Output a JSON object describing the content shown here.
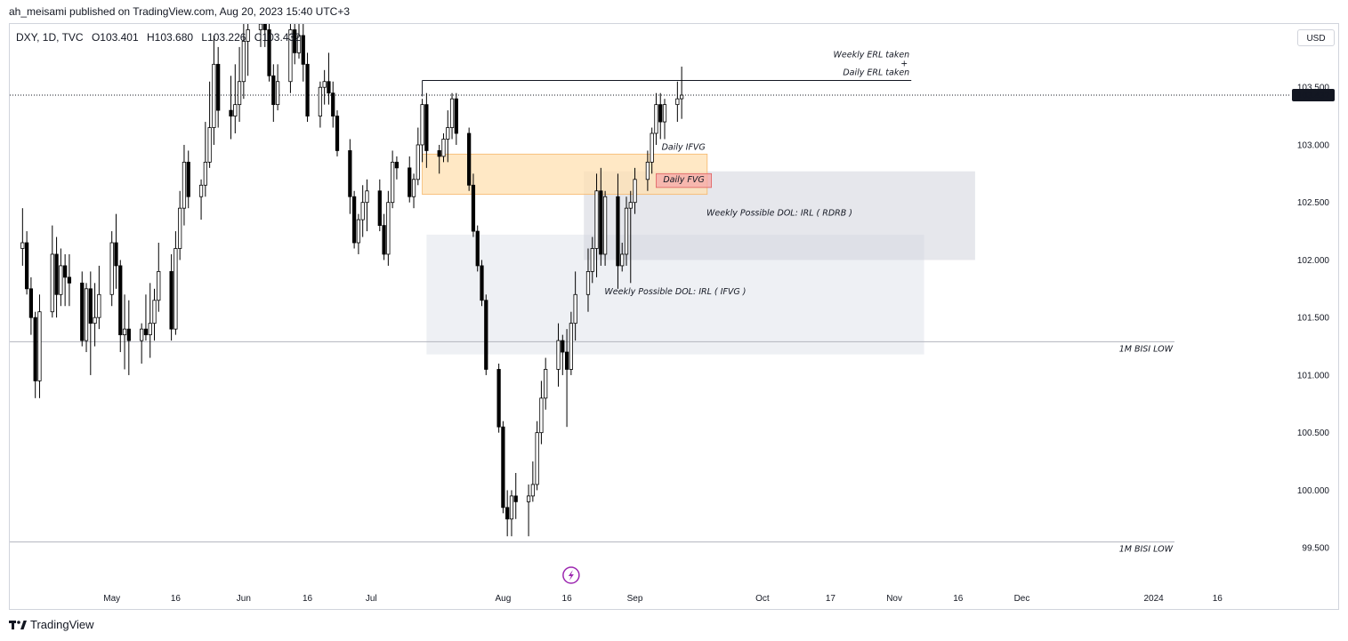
{
  "header": {
    "published": "ah_meisami published on TradingView.com, Aug 20, 2023 15:40 UTC+3"
  },
  "legend": {
    "symbol": "DXY, 1D, TVC",
    "open": "O103.401",
    "high": "H103.680",
    "low": "L103.226",
    "close": "C103.432"
  },
  "currency_button": "USD",
  "footer": {
    "brand": "TradingView"
  },
  "colors": {
    "ifvg_zone": "#ffe0b2",
    "ifvg_border": "#f5b76b",
    "fvg_zone": "#f5a8a8",
    "fvg_border": "#e06060",
    "dol_rdrb_zone": "#d1d4dc",
    "dol_ifvg_zone": "#e0e3eb",
    "bear_candle": "#000000",
    "bull_candle": "#ffffff",
    "event_icon": "#9c27b0"
  },
  "chart_data": {
    "type": "candlestick",
    "symbol": "DXY",
    "timeframe": "1D",
    "ylim": [
      99.2,
      104.05
    ],
    "y_ticks": [
      "103.500",
      "103.000",
      "102.500",
      "102.000",
      "101.500",
      "101.000",
      "100.500",
      "100.000",
      "99.500"
    ],
    "last_price": "103.432",
    "x_ticks": [
      {
        "label": "May",
        "date": "2023-05-01"
      },
      {
        "label": "16",
        "date": "2023-05-16"
      },
      {
        "label": "Jun",
        "date": "2023-06-01"
      },
      {
        "label": "16",
        "date": "2023-06-16"
      },
      {
        "label": "Jul",
        "date": "2023-07-01"
      },
      {
        "label": "Aug",
        "date": "2023-08-01"
      },
      {
        "label": "16",
        "date": "2023-08-16"
      },
      {
        "label": "Sep",
        "date": "2023-09-01"
      },
      {
        "label": "Oct",
        "date": "2023-10-01"
      },
      {
        "label": "17",
        "date": "2023-10-17"
      },
      {
        "label": "Nov",
        "date": "2023-11-01"
      },
      {
        "label": "16",
        "date": "2023-11-16"
      },
      {
        "label": "Dec",
        "date": "2023-12-01"
      },
      {
        "label": "2024",
        "date": "2024-01-01"
      },
      {
        "label": "16",
        "date": "2024-01-16"
      }
    ],
    "x_range": [
      "2023-04-07",
      "2024-01-31"
    ],
    "candles": [
      [
        "2023-04-10",
        102.1,
        102.45,
        101.95,
        102.15
      ],
      [
        "2023-04-11",
        102.15,
        102.25,
        101.7,
        101.75
      ],
      [
        "2023-04-12",
        101.75,
        101.85,
        101.35,
        101.5
      ],
      [
        "2023-04-13",
        101.5,
        101.55,
        100.8,
        100.95
      ],
      [
        "2023-04-14",
        100.95,
        101.7,
        100.8,
        101.55
      ],
      [
        "2023-04-17",
        101.55,
        102.3,
        101.5,
        102.05
      ],
      [
        "2023-04-18",
        102.05,
        102.2,
        101.5,
        101.7
      ],
      [
        "2023-04-19",
        101.7,
        102.1,
        101.6,
        101.95
      ],
      [
        "2023-04-20",
        101.95,
        102.05,
        101.6,
        101.85
      ],
      [
        "2023-04-21",
        101.85,
        102.05,
        101.6,
        101.8
      ],
      [
        "2023-04-24",
        101.8,
        101.9,
        101.25,
        101.3
      ],
      [
        "2023-04-25",
        101.3,
        101.8,
        101.2,
        101.75
      ],
      [
        "2023-04-26",
        101.75,
        101.9,
        101.0,
        101.45
      ],
      [
        "2023-04-27",
        101.45,
        101.8,
        101.25,
        101.5
      ],
      [
        "2023-04-28",
        101.5,
        101.95,
        101.4,
        101.7
      ],
      [
        "2023-05-01",
        101.7,
        102.25,
        101.6,
        102.15
      ],
      [
        "2023-05-02",
        102.15,
        102.4,
        101.75,
        101.95
      ],
      [
        "2023-05-03",
        101.95,
        102.0,
        101.2,
        101.35
      ],
      [
        "2023-05-04",
        101.35,
        101.7,
        101.05,
        101.4
      ],
      [
        "2023-05-05",
        101.4,
        101.65,
        101.0,
        101.3
      ],
      [
        "2023-05-08",
        101.3,
        101.45,
        101.1,
        101.4
      ],
      [
        "2023-05-09",
        101.4,
        101.7,
        101.3,
        101.35
      ],
      [
        "2023-05-10",
        101.35,
        101.8,
        101.15,
        101.45
      ],
      [
        "2023-05-11",
        101.45,
        101.75,
        101.3,
        101.65
      ],
      [
        "2023-05-12",
        101.65,
        102.15,
        101.55,
        101.9
      ],
      [
        "2023-05-15",
        101.9,
        102.05,
        101.3,
        101.4
      ],
      [
        "2023-05-16",
        101.4,
        102.25,
        101.35,
        102.1
      ],
      [
        "2023-05-17",
        102.1,
        102.6,
        102.0,
        102.45
      ],
      [
        "2023-05-18",
        102.45,
        103.0,
        102.3,
        102.85
      ],
      [
        "2023-05-19",
        102.85,
        102.95,
        102.45,
        102.55
      ],
      [
        "2023-05-22",
        102.55,
        102.7,
        102.35,
        102.65
      ],
      [
        "2023-05-23",
        102.65,
        103.2,
        102.55,
        102.85
      ],
      [
        "2023-05-24",
        102.85,
        103.55,
        102.8,
        103.15
      ],
      [
        "2023-05-25",
        103.15,
        103.95,
        103.0,
        103.7
      ],
      [
        "2023-05-26",
        103.7,
        103.85,
        103.15,
        103.3
      ],
      [
        "2023-05-29",
        103.3,
        103.6,
        103.05,
        103.25
      ],
      [
        "2023-05-30",
        103.25,
        103.7,
        103.1,
        103.35
      ],
      [
        "2023-05-31",
        103.35,
        103.85,
        103.2,
        103.55
      ],
      [
        "2023-06-01",
        103.55,
        104.05,
        103.4,
        103.9
      ],
      [
        "2023-06-02",
        103.9,
        104.1,
        103.6,
        104.0
      ],
      [
        "2023-06-05",
        104.0,
        104.15,
        103.85,
        104.05
      ],
      [
        "2023-06-06",
        104.05,
        104.1,
        103.85,
        104.0
      ],
      [
        "2023-06-07",
        104.0,
        104.1,
        103.55,
        103.6
      ],
      [
        "2023-06-08",
        103.6,
        103.7,
        103.2,
        103.35
      ],
      [
        "2023-06-09",
        103.35,
        103.7,
        103.3,
        103.55
      ],
      [
        "2023-06-12",
        103.55,
        104.15,
        103.45,
        104.0
      ],
      [
        "2023-06-13",
        104.0,
        104.05,
        103.7,
        103.8
      ],
      [
        "2023-06-14",
        103.8,
        104.05,
        103.75,
        103.95
      ],
      [
        "2023-06-15",
        103.95,
        104.05,
        103.55,
        103.7
      ],
      [
        "2023-06-16",
        103.7,
        103.8,
        103.2,
        103.25
      ],
      [
        "2023-06-19",
        103.25,
        103.55,
        103.15,
        103.5
      ],
      [
        "2023-06-20",
        103.5,
        103.65,
        103.35,
        103.55
      ],
      [
        "2023-06-21",
        103.55,
        103.8,
        103.35,
        103.45
      ],
      [
        "2023-06-22",
        103.45,
        103.55,
        103.15,
        103.25
      ],
      [
        "2023-06-23",
        103.25,
        103.3,
        102.9,
        102.95
      ],
      [
        "2023-06-26",
        102.95,
        103.05,
        102.4,
        102.55
      ],
      [
        "2023-06-27",
        102.55,
        102.6,
        102.1,
        102.15
      ],
      [
        "2023-06-28",
        102.15,
        102.4,
        102.05,
        102.35
      ],
      [
        "2023-06-29",
        102.35,
        102.65,
        102.2,
        102.5
      ],
      [
        "2023-06-30",
        102.5,
        102.7,
        102.25,
        102.6
      ],
      [
        "2023-07-03",
        102.6,
        102.7,
        102.25,
        102.3
      ],
      [
        "2023-07-04",
        102.3,
        102.4,
        102.0,
        102.05
      ],
      [
        "2023-07-05",
        102.05,
        102.6,
        101.95,
        102.5
      ],
      [
        "2023-07-06",
        102.5,
        102.95,
        102.45,
        102.85
      ],
      [
        "2023-07-07",
        102.85,
        102.9,
        102.7,
        102.8
      ],
      [
        "2023-07-10",
        102.8,
        102.9,
        102.5,
        102.55
      ],
      [
        "2023-07-11",
        102.55,
        102.75,
        102.45,
        102.7
      ],
      [
        "2023-07-12",
        102.7,
        103.15,
        102.65,
        103.0
      ],
      [
        "2023-07-13",
        103.0,
        103.4,
        102.85,
        103.35
      ],
      [
        "2023-07-14",
        103.35,
        103.45,
        102.8,
        102.95
      ],
      [
        "2023-07-17",
        102.95,
        103.0,
        102.75,
        102.9
      ],
      [
        "2023-07-18",
        102.9,
        103.1,
        102.85,
        103.05
      ],
      [
        "2023-07-19",
        103.05,
        103.3,
        102.85,
        103.15
      ],
      [
        "2023-07-20",
        103.15,
        103.45,
        103.05,
        103.4
      ],
      [
        "2023-07-21",
        103.4,
        103.45,
        103.0,
        103.1
      ],
      [
        "2023-07-24",
        103.1,
        103.15,
        102.6,
        102.65
      ],
      [
        "2023-07-25",
        102.65,
        102.75,
        102.2,
        102.25
      ],
      [
        "2023-07-26",
        102.25,
        102.3,
        101.9,
        101.95
      ],
      [
        "2023-07-27",
        101.95,
        102.0,
        101.6,
        101.65
      ],
      [
        "2023-07-28",
        101.65,
        101.7,
        101.0,
        101.05
      ],
      [
        "2023-07-31",
        101.05,
        101.1,
        100.5,
        100.55
      ],
      [
        "2023-08-01",
        100.55,
        100.6,
        99.8,
        99.85
      ],
      [
        "2023-08-02",
        99.85,
        100.0,
        99.6,
        99.75
      ],
      [
        "2023-08-03",
        99.75,
        100.0,
        99.6,
        99.95
      ],
      [
        "2023-08-04",
        99.95,
        100.15,
        99.75,
        99.9
      ],
      [
        "2023-08-07",
        99.9,
        100.05,
        99.6,
        99.95
      ],
      [
        "2023-08-08",
        99.95,
        100.25,
        99.9,
        100.05
      ],
      [
        "2023-08-09",
        100.05,
        100.6,
        100.0,
        100.5
      ],
      [
        "2023-08-10",
        100.5,
        100.95,
        100.4,
        100.8
      ],
      [
        "2023-08-11",
        100.8,
        101.15,
        100.7,
        101.05
      ],
      [
        "2023-08-14",
        101.05,
        101.45,
        100.9,
        101.3
      ],
      [
        "2023-08-15",
        101.3,
        101.35,
        101.0,
        101.2
      ],
      [
        "2023-08-16",
        101.2,
        101.4,
        100.55,
        101.05
      ],
      [
        "2023-08-17",
        101.05,
        101.55,
        101.0,
        101.45
      ],
      [
        "2023-08-18",
        101.45,
        101.9,
        101.3,
        101.7
      ],
      [
        "2023-08-21",
        101.7,
        102.1,
        101.55,
        101.9
      ],
      [
        "2023-08-22",
        101.9,
        102.2,
        101.8,
        102.1
      ],
      [
        "2023-08-23",
        102.1,
        102.75,
        101.85,
        102.6
      ],
      [
        "2023-08-24",
        102.6,
        102.8,
        101.95,
        102.05
      ],
      [
        "2023-08-25",
        102.05,
        102.6,
        101.95,
        102.55
      ],
      [
        "2023-08-28",
        102.55,
        102.75,
        101.75,
        101.95
      ],
      [
        "2023-08-29",
        101.95,
        102.15,
        101.9,
        102.05
      ],
      [
        "2023-08-30",
        102.05,
        102.55,
        101.95,
        102.45
      ],
      [
        "2023-08-31",
        102.45,
        102.6,
        101.8,
        102.5
      ],
      [
        "2023-09-01",
        102.5,
        102.8,
        102.4,
        102.7
      ],
      [
        "2023-09-04",
        102.7,
        102.95,
        102.6,
        102.85
      ],
      [
        "2023-09-05",
        102.85,
        103.15,
        102.75,
        103.1
      ],
      [
        "2023-09-06",
        103.1,
        103.45,
        103.0,
        103.35
      ],
      [
        "2023-09-07",
        103.35,
        103.45,
        103.05,
        103.2
      ],
      [
        "2023-09-08",
        103.2,
        103.4,
        103.05,
        103.35
      ],
      [
        "2023-09-11",
        103.35,
        103.55,
        103.2,
        103.4
      ],
      [
        "2023-09-12",
        103.401,
        103.68,
        103.226,
        103.432
      ]
    ],
    "current_price_line": 103.432,
    "horizontal_lines": [
      {
        "value": 101.29,
        "label": "1M BISI LOW"
      },
      {
        "value": 99.55,
        "label": "1M BISI LOW"
      }
    ],
    "erl_line": {
      "value": 103.56,
      "start": "2023-07-13",
      "end": "2023-11-05"
    },
    "zones": [
      {
        "name": "Daily IFVG",
        "top": 102.92,
        "bottom": 102.57,
        "start": "2023-07-13",
        "end": "2023-09-18"
      },
      {
        "name": "Daily FVG",
        "top": 102.75,
        "bottom": 102.63,
        "start": "2023-09-06",
        "end": "2023-09-19"
      },
      {
        "name": "Weekly Possible DOL: IRL ( RDRB )",
        "top": 102.77,
        "bottom": 102.0,
        "start": "2023-08-20",
        "end": "2023-11-20"
      },
      {
        "name": "Weekly Possible DOL: IRL ( IFVG )",
        "top": 102.22,
        "bottom": 101.18,
        "start": "2023-07-14",
        "end": "2023-11-08"
      }
    ],
    "annotations": {
      "erl_line1": "Weekly ERL taken",
      "erl_plus": "+",
      "erl_line2": "Daily ERL taken",
      "ifvg": "Daily IFVG",
      "fvg": "Daily FVG",
      "dol_rdrb": "Weekly Possible DOL: IRL ( RDRB )",
      "dol_ifvg": "Weekly Possible DOL: IRL ( IFVG )",
      "bisi_upper": "1M BISI LOW",
      "bisi_lower": "1M BISI LOW"
    },
    "event_icon": {
      "name": "lightning-icon",
      "date": "2023-08-17"
    }
  }
}
